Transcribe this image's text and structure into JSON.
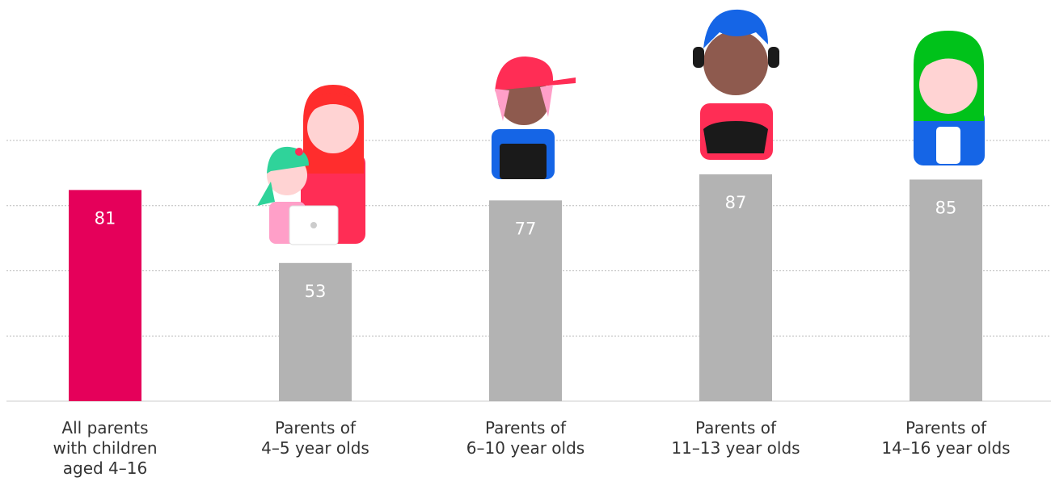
{
  "chart_data": {
    "type": "bar",
    "categories": [
      "All parents\nwith children\naged 4–16",
      "Parents of\n4–5 year olds",
      "Parents of\n6–10 year olds",
      "Parents of\n11–13 year olds",
      "Parents of\n14–16 year olds"
    ],
    "values": [
      81,
      53,
      77,
      87,
      85
    ],
    "colors": [
      "#e5005a",
      "#b3b3b3",
      "#b3b3b3",
      "#b3b3b3",
      "#b3b3b3"
    ],
    "ylim": [
      0,
      100
    ],
    "yticks": [
      25,
      50,
      75,
      100
    ],
    "grid": true
  }
}
